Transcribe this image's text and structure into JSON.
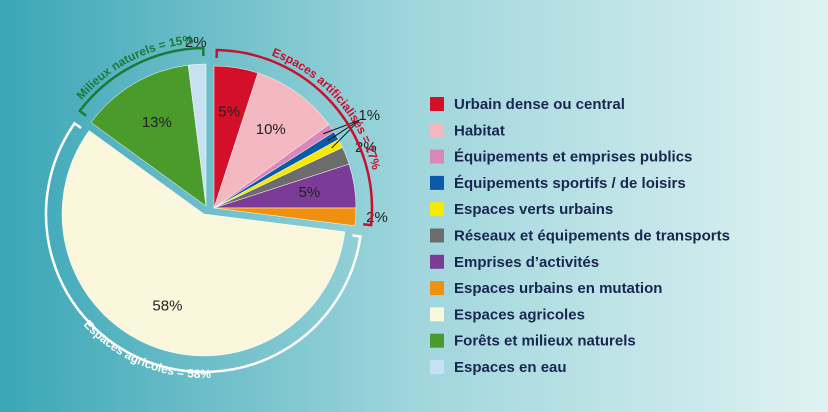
{
  "chart_data": {
    "type": "pie",
    "categories": [
      "Urbain dense ou central",
      "Habitat",
      "Équipements et emprises publics",
      "Équipements sportifs / de loisirs",
      "Espaces verts urbains",
      "Réseaux et équipements de transports",
      "Emprises d’activités",
      "Espaces urbains en mutation",
      "Espaces agricoles",
      "Forêts et milieux naturels",
      "Espaces en eau"
    ],
    "values": [
      5,
      10,
      1,
      1,
      1,
      2,
      5,
      2,
      58,
      13,
      2
    ],
    "value_labels": [
      "5%",
      "10%",
      "1%",
      null,
      null,
      "2%",
      "5%",
      "2%",
      "58%",
      "13%",
      "2%"
    ],
    "colors": [
      "#d40f2a",
      "#f4b8c0",
      "#d988b8",
      "#0a5aa8",
      "#f5e900",
      "#6c6c6c",
      "#7b3c98",
      "#f0900f",
      "#fbf7dc",
      "#4a9a2c",
      "#c6e2f2"
    ],
    "annotations": [
      {
        "text": "Espaces artificialisés = 27%",
        "color": "#c8102e"
      },
      {
        "text": "Espaces agricoles = 58%",
        "color": "#ffffff"
      },
      {
        "text": "Milieux naturels = 15%",
        "color": "#1a7a3a"
      }
    ]
  }
}
